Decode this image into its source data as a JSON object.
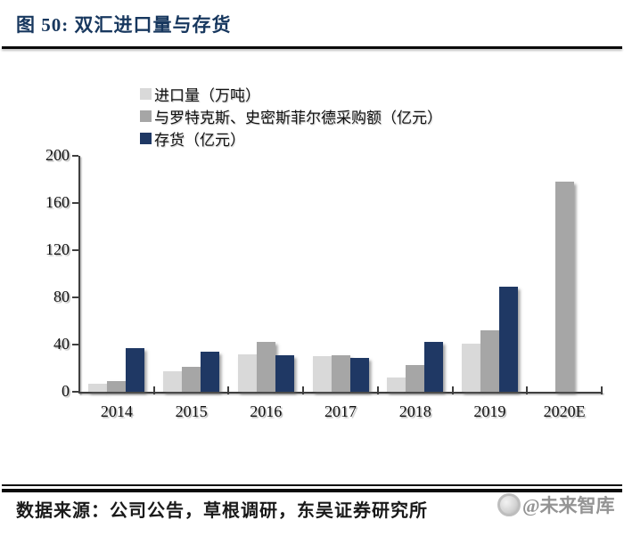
{
  "figure": {
    "title": "图 50:  双汇进口量与存货",
    "source": "数据来源：公司公告，草根调研，东吴证券研究所",
    "watermark": "@未来智库"
  },
  "colors": {
    "title_navy": "#17375e",
    "axis": "#3f3f3f",
    "bar_light_gray": "#d9d9d9",
    "bar_gray": "#a6a6a6",
    "bar_navy": "#1f3864"
  },
  "chart_data": {
    "type": "bar",
    "title": "双汇进口量与存货",
    "categories": [
      "2014",
      "2015",
      "2016",
      "2017",
      "2018",
      "2019",
      "2020E"
    ],
    "series": [
      {
        "name": "进口量（万吨）",
        "color": "#d9d9d9",
        "values": [
          7,
          17,
          32,
          30,
          12,
          41,
          null
        ]
      },
      {
        "name": "与罗特克斯、史密斯菲尔德采购额（亿元）",
        "color": "#a6a6a6",
        "values": [
          9,
          21,
          42,
          31,
          23,
          52,
          178
        ]
      },
      {
        "name": "存货（亿元）",
        "color": "#1f3864",
        "values": [
          37,
          34,
          31,
          29,
          42,
          89,
          null
        ]
      }
    ],
    "ylim": [
      0,
      200
    ],
    "yticks": [
      0,
      40,
      80,
      120,
      160,
      200
    ],
    "xlabel": "",
    "ylabel": "",
    "legend_position": "top-left",
    "grid": false
  }
}
